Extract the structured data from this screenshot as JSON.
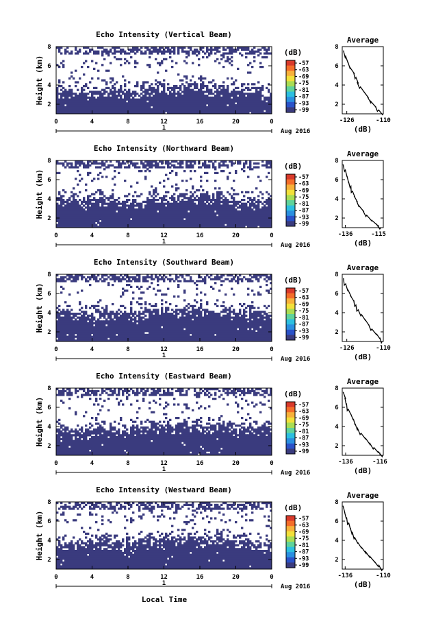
{
  "figure": {
    "xlabel": "Local Time",
    "date_label": "Aug 2016",
    "day_label": "1",
    "ylabel": "Height (km)",
    "colorbar_unit": "(dB)",
    "colorbar_ticks": [
      "-57",
      "-63",
      "-69",
      "-75",
      "-81",
      "-87",
      "-93",
      "-99"
    ],
    "colorbar_colors": [
      "#d93a2b",
      "#f46d2a",
      "#f7b13a",
      "#f2e03a",
      "#a9dd54",
      "#5fd39b",
      "#2cbfe0",
      "#2a8fe0",
      "#2a52c8",
      "#3a3b7e"
    ],
    "background_color": "#3a3b7e",
    "avg_title": "Average",
    "avg_xlabel": "(dB)"
  },
  "chart_data": [
    {
      "type": "heatmap",
      "title": "Echo Intensity (Vertical Beam)",
      "ylabel": "Height (km)",
      "xticks": [
        "0",
        "4",
        "8",
        "12",
        "16",
        "20",
        "0"
      ],
      "yticks": [
        "2",
        "4",
        "6",
        "8"
      ],
      "xlim": [
        0,
        24
      ],
      "ylim": [
        1,
        8
      ],
      "colorbar_ticks": [
        "-57",
        "-63",
        "-69",
        "-75",
        "-81",
        "-87",
        "-93",
        "-99"
      ],
      "echo_top_km": [
        3.5,
        3.4,
        3.6,
        3.5,
        3.3,
        3.4,
        3.6,
        3.5,
        3.4,
        3.3,
        3.6,
        3.9,
        3.8,
        3.7,
        3.9,
        4.3,
        4.0,
        3.8,
        3.7,
        3.6,
        3.5,
        3.5,
        3.6,
        3.3,
        3.4
      ],
      "average": {
        "title": "Average",
        "xlabel": "(dB)",
        "xticks": [
          "-126",
          "-110"
        ],
        "xlim": [
          -128,
          -110
        ],
        "yticks": [
          "2",
          "4",
          "6",
          "8"
        ],
        "ylim": [
          1,
          8
        ],
        "x": [
          -127.5,
          -126.5,
          -125.5,
          -124.5,
          -123.0,
          -122.0,
          -121.5,
          -120.0,
          -118.5,
          -117.0,
          -115.5,
          -113.5,
          -112.0,
          -110.5
        ],
        "y": [
          7.6,
          7.0,
          6.4,
          5.8,
          5.3,
          4.8,
          4.3,
          3.8,
          3.3,
          2.8,
          2.3,
          1.8,
          1.4,
          1.0
        ]
      }
    },
    {
      "type": "heatmap",
      "title": "Echo Intensity (Northward Beam)",
      "ylabel": "Height (km)",
      "xticks": [
        "0",
        "4",
        "8",
        "12",
        "16",
        "20",
        "0"
      ],
      "yticks": [
        "2",
        "4",
        "6",
        "8"
      ],
      "xlim": [
        0,
        24
      ],
      "ylim": [
        1,
        8
      ],
      "colorbar_ticks": [
        "-57",
        "-63",
        "-69",
        "-75",
        "-81",
        "-87",
        "-93",
        "-99"
      ],
      "echo_top_km": [
        4.2,
        4.0,
        4.1,
        3.8,
        4.0,
        4.2,
        3.9,
        3.7,
        3.8,
        3.6,
        3.9,
        4.1,
        4.0,
        4.2,
        4.3,
        4.6,
        4.3,
        4.1,
        4.4,
        4.0,
        3.8,
        3.9,
        3.7,
        3.9,
        3.8
      ],
      "average": {
        "title": "Average",
        "xlabel": "(dB)",
        "xticks": [
          "-136",
          "-115"
        ],
        "xlim": [
          -138,
          -112
        ],
        "yticks": [
          "2",
          "4",
          "6",
          "8"
        ],
        "ylim": [
          1,
          8
        ],
        "x": [
          -137.5,
          -136.0,
          -135.0,
          -134.0,
          -132.5,
          -131.5,
          -130.5,
          -129.0,
          -127.5,
          -125.0,
          -122.5,
          -119.5,
          -116.5,
          -113.5
        ],
        "y": [
          7.6,
          7.0,
          6.4,
          5.8,
          5.3,
          4.8,
          4.3,
          3.8,
          3.3,
          2.8,
          2.3,
          1.8,
          1.4,
          1.0
        ]
      }
    },
    {
      "type": "heatmap",
      "title": "Echo Intensity (Southward Beam)",
      "ylabel": "Height (km)",
      "xticks": [
        "0",
        "4",
        "8",
        "12",
        "16",
        "20",
        "0"
      ],
      "yticks": [
        "2",
        "4",
        "6",
        "8"
      ],
      "xlim": [
        0,
        24
      ],
      "ylim": [
        1,
        8
      ],
      "colorbar_ticks": [
        "-57",
        "-63",
        "-69",
        "-75",
        "-81",
        "-87",
        "-93",
        "-99"
      ],
      "echo_top_km": [
        4.0,
        4.2,
        4.1,
        3.9,
        3.8,
        4.1,
        4.0,
        3.8,
        3.9,
        4.2,
        4.1,
        4.3,
        4.4,
        4.2,
        4.5,
        4.6,
        4.2,
        4.1,
        4.3,
        4.2,
        4.0,
        4.1,
        3.9,
        4.0,
        3.8
      ],
      "average": {
        "title": "Average",
        "xlabel": "(dB)",
        "xticks": [
          "-126",
          "-110"
        ],
        "xlim": [
          -128,
          -110
        ],
        "yticks": [
          "2",
          "4",
          "6",
          "8"
        ],
        "ylim": [
          1,
          8
        ],
        "x": [
          -127.5,
          -126.5,
          -125.5,
          -124.5,
          -123.0,
          -122.0,
          -121.0,
          -119.5,
          -118.0,
          -116.5,
          -115.0,
          -113.0,
          -111.5,
          -110.5
        ],
        "y": [
          7.6,
          7.0,
          6.4,
          5.8,
          5.3,
          4.8,
          4.3,
          3.8,
          3.3,
          2.8,
          2.3,
          1.8,
          1.4,
          1.0
        ]
      }
    },
    {
      "type": "heatmap",
      "title": "Echo Intensity (Eastward Beam)",
      "ylabel": "Height (km)",
      "xticks": [
        "0",
        "4",
        "8",
        "12",
        "16",
        "20",
        "0"
      ],
      "yticks": [
        "2",
        "4",
        "6",
        "8"
      ],
      "xlim": [
        0,
        24
      ],
      "ylim": [
        1,
        8
      ],
      "colorbar_ticks": [
        "-57",
        "-63",
        "-69",
        "-75",
        "-81",
        "-87",
        "-93",
        "-99"
      ],
      "echo_top_km": [
        3.7,
        3.8,
        3.6,
        3.5,
        3.7,
        3.9,
        3.8,
        3.6,
        3.7,
        3.9,
        4.0,
        4.1,
        4.2,
        4.0,
        4.4,
        4.3,
        4.1,
        4.0,
        4.2,
        4.1,
        3.9,
        4.0,
        3.8,
        3.9,
        3.7
      ],
      "average": {
        "title": "Average",
        "xlabel": "(dB)",
        "xticks": [
          "-136",
          "-116"
        ],
        "xlim": [
          -138,
          -114
        ],
        "yticks": [
          "2",
          "4",
          "6",
          "8"
        ],
        "ylim": [
          1,
          8
        ],
        "x": [
          -137.5,
          -136.5,
          -135.5,
          -134.5,
          -133.0,
          -131.5,
          -130.5,
          -129.0,
          -127.0,
          -124.5,
          -122.0,
          -119.5,
          -117.0,
          -114.5
        ],
        "y": [
          7.6,
          7.0,
          6.4,
          5.8,
          5.3,
          4.8,
          4.3,
          3.8,
          3.3,
          2.8,
          2.3,
          1.8,
          1.4,
          1.0
        ]
      }
    },
    {
      "type": "heatmap",
      "title": "Echo Intensity (Westward Beam)",
      "ylabel": "Height (km)",
      "xticks": [
        "0",
        "4",
        "8",
        "12",
        "16",
        "20",
        "0"
      ],
      "yticks": [
        "2",
        "4",
        "6",
        "8"
      ],
      "xlim": [
        0,
        24
      ],
      "ylim": [
        1,
        8
      ],
      "colorbar_ticks": [
        "-57",
        "-63",
        "-69",
        "-75",
        "-81",
        "-87",
        "-93",
        "-99"
      ],
      "echo_top_km": [
        3.8,
        3.6,
        3.7,
        3.9,
        3.8,
        4.0,
        3.9,
        3.7,
        3.8,
        4.0,
        4.1,
        4.2,
        4.1,
        4.3,
        4.4,
        4.3,
        4.2,
        4.1,
        4.3,
        4.0,
        3.9,
        4.0,
        3.8,
        3.9,
        3.7
      ],
      "average": {
        "title": "Average",
        "xlabel": "(dB)",
        "xticks": [
          "-136",
          "-110"
        ],
        "xlim": [
          -138,
          -110
        ],
        "yticks": [
          "2",
          "4",
          "6",
          "8"
        ],
        "ylim": [
          1,
          8
        ],
        "x": [
          -137.5,
          -136.5,
          -135.0,
          -133.5,
          -132.5,
          -131.0,
          -129.5,
          -127.5,
          -125.0,
          -122.0,
          -119.0,
          -116.0,
          -113.0,
          -110.5
        ],
        "y": [
          7.6,
          7.0,
          6.4,
          5.8,
          5.3,
          4.8,
          4.3,
          3.8,
          3.3,
          2.8,
          2.3,
          1.8,
          1.4,
          1.0
        ]
      }
    }
  ]
}
